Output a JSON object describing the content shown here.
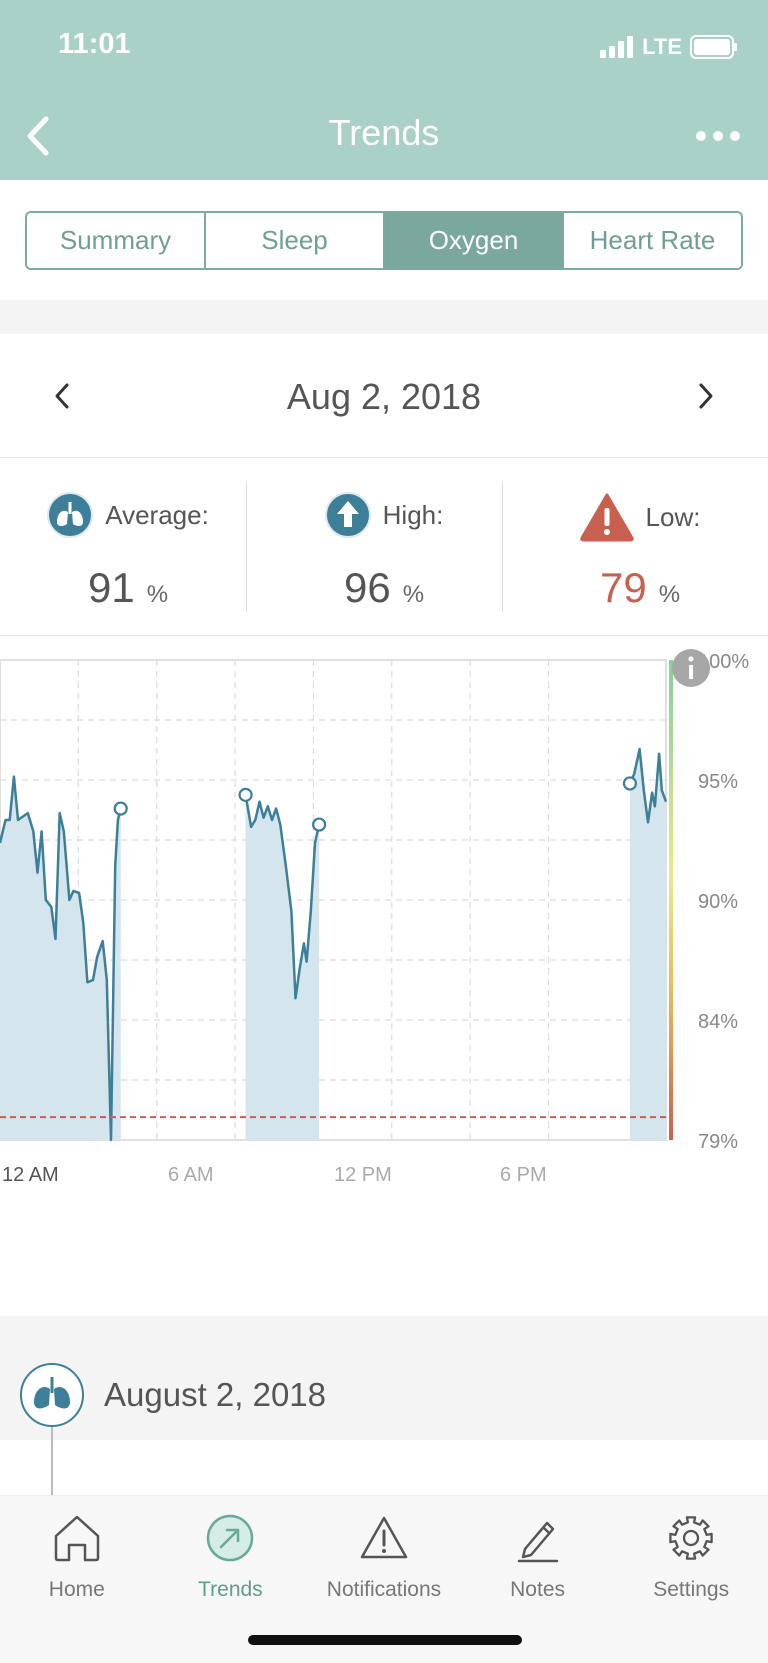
{
  "status_bar": {
    "time": "11:01",
    "network": "LTE"
  },
  "nav": {
    "title": "Trends"
  },
  "tabs": [
    {
      "label": "Summary",
      "active": false
    },
    {
      "label": "Sleep",
      "active": false
    },
    {
      "label": "Oxygen",
      "active": true
    },
    {
      "label": "Heart Rate",
      "active": false
    }
  ],
  "date_nav": {
    "date": "Aug 2, 2018"
  },
  "stats": {
    "average": {
      "label": "Average:",
      "value": "91",
      "unit": "%"
    },
    "high": {
      "label": "High:",
      "value": "96",
      "unit": "%"
    },
    "low": {
      "label": "Low:",
      "value": "79",
      "unit": "%"
    }
  },
  "chart_data": {
    "type": "area",
    "x_ticks": [
      "12 AM",
      "6 AM",
      "12 PM",
      "6 PM"
    ],
    "y_ticks": [
      "100%",
      "95%",
      "90%",
      "84%",
      "79%"
    ],
    "ylim": [
      79,
      100
    ],
    "xlim_hours": [
      0,
      24
    ],
    "threshold": 80,
    "segments": [
      {
        "points": [
          [
            0,
            92
          ],
          [
            0.2,
            93
          ],
          [
            0.35,
            93
          ],
          [
            0.5,
            94.9
          ],
          [
            0.65,
            93
          ],
          [
            1.0,
            93.3
          ],
          [
            1.2,
            92.5
          ],
          [
            1.35,
            90.7
          ],
          [
            1.5,
            92.5
          ],
          [
            1.65,
            89.5
          ],
          [
            1.85,
            89.2
          ],
          [
            2.0,
            87.8
          ],
          [
            2.15,
            93.3
          ],
          [
            2.3,
            92.5
          ],
          [
            2.5,
            89.5
          ],
          [
            2.65,
            89.9
          ],
          [
            2.85,
            89.8
          ],
          [
            3.0,
            88.5
          ],
          [
            3.15,
            85.9
          ],
          [
            3.35,
            86.0
          ],
          [
            3.5,
            87.0
          ],
          [
            3.7,
            87.7
          ],
          [
            3.85,
            86.0
          ],
          [
            4.0,
            79.0
          ],
          [
            4.15,
            91.0
          ],
          [
            4.25,
            93.0
          ],
          [
            4.35,
            93.5
          ]
        ],
        "end_markers": [
          [
            4.35,
            93.5
          ]
        ]
      },
      {
        "points": [
          [
            8.85,
            94.1
          ],
          [
            9.05,
            92.7
          ],
          [
            9.2,
            93.0
          ],
          [
            9.35,
            93.8
          ],
          [
            9.5,
            93.1
          ],
          [
            9.65,
            93.6
          ],
          [
            9.8,
            93.0
          ],
          [
            9.95,
            93.5
          ],
          [
            10.1,
            92.8
          ],
          [
            10.3,
            91.0
          ],
          [
            10.5,
            89.0
          ],
          [
            10.65,
            85.2
          ],
          [
            10.8,
            86.5
          ],
          [
            10.95,
            87.6
          ],
          [
            11.05,
            86.8
          ],
          [
            11.2,
            89.0
          ],
          [
            11.35,
            92.0
          ],
          [
            11.5,
            92.8
          ]
        ],
        "start_markers": [
          [
            8.85,
            94.1
          ]
        ],
        "end_markers": [
          [
            11.5,
            92.8
          ]
        ]
      },
      {
        "points": [
          [
            22.7,
            94.6
          ],
          [
            22.85,
            95.0
          ],
          [
            23.05,
            96.1
          ],
          [
            23.2,
            94.3
          ],
          [
            23.35,
            92.9
          ],
          [
            23.5,
            94.2
          ],
          [
            23.6,
            93.6
          ],
          [
            23.75,
            95.9
          ],
          [
            23.85,
            94.3
          ],
          [
            24.0,
            93.8
          ]
        ],
        "start_markers": [
          [
            22.7,
            94.6
          ]
        ]
      }
    ]
  },
  "entry": {
    "date": "August 2, 2018"
  },
  "tabbar": [
    {
      "label": "Home",
      "active": false
    },
    {
      "label": "Trends",
      "active": true
    },
    {
      "label": "Notifications",
      "active": false
    },
    {
      "label": "Notes",
      "active": false
    },
    {
      "label": "Settings",
      "active": false
    }
  ],
  "colors": {
    "header_bg": "#a9d1c8",
    "accent": "#7aa89e",
    "chart_line": "#3d7f99",
    "chart_fill": "#d4e5ed",
    "low_red": "#c9604f",
    "threshold_red": "#c9604f"
  }
}
